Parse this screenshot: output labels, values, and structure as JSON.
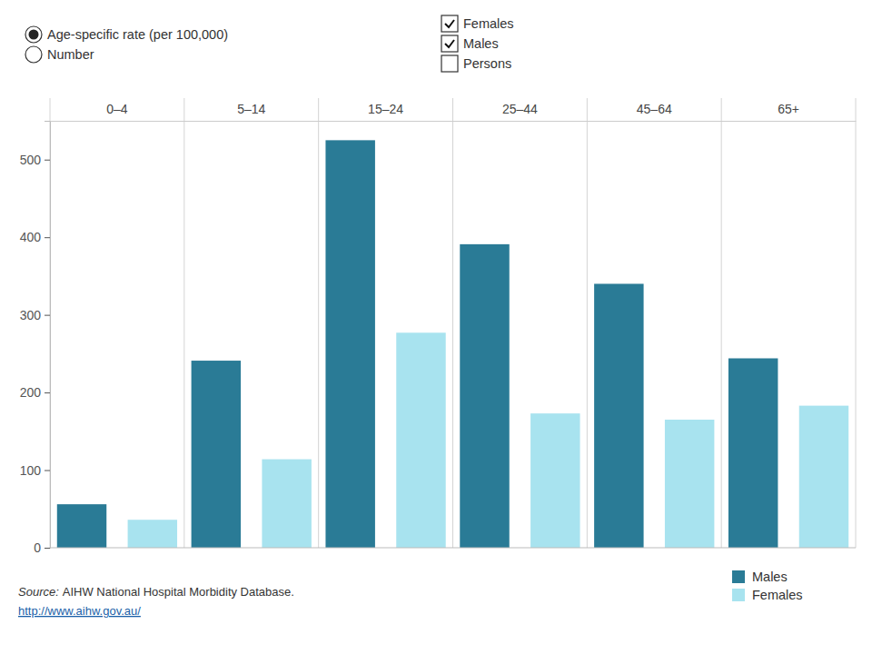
{
  "chart_data": {
    "type": "bar",
    "categories": [
      "0–4",
      "5–14",
      "15–24",
      "25–44",
      "45–64",
      "65+"
    ],
    "series": [
      {
        "name": "Males",
        "color": "#2a7b96",
        "values": [
          56,
          241,
          525,
          391,
          340,
          244
        ]
      },
      {
        "name": "Females",
        "color": "#a8e3ef",
        "values": [
          36,
          114,
          277,
          173,
          165,
          183
        ]
      }
    ],
    "ylim": [
      0,
      550
    ],
    "yticks": [
      0,
      100,
      200,
      300,
      400,
      500
    ],
    "grid": false,
    "legend": "bottom-right"
  },
  "controls": {
    "radios": [
      {
        "label": "Age-specific rate (per 100,000)",
        "selected": true
      },
      {
        "label": "Number",
        "selected": false
      }
    ],
    "checkboxes": [
      {
        "label": "Females",
        "checked": true
      },
      {
        "label": "Males",
        "checked": true
      },
      {
        "label": "Persons",
        "checked": false
      }
    ]
  },
  "source": {
    "label": "Source:",
    "text": "AIHW National Hospital Morbidity Database.",
    "link": "http://www.aihw.gov.au/"
  }
}
